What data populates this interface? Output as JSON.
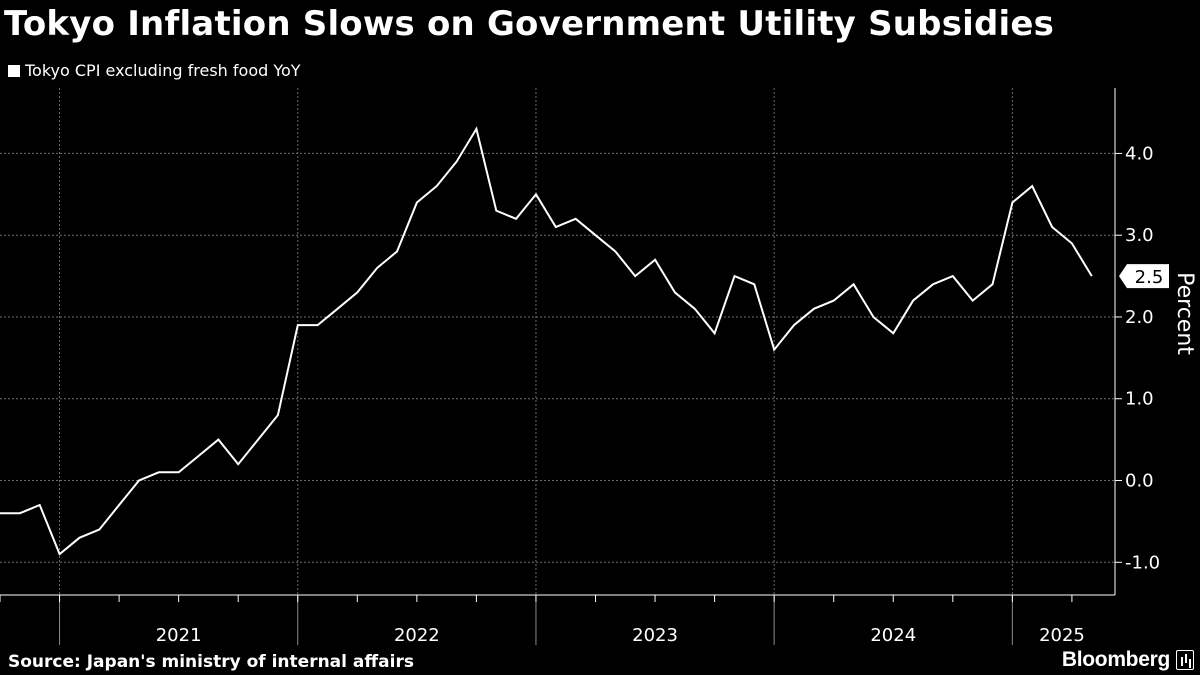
{
  "title": "Tokyo Inflation Slows on Government Utility Subsidies",
  "source": "Source: Japan's ministry of internal affairs",
  "brand": "Bloomberg",
  "brand_icon": "bloomberg-chart-icon",
  "colors": {
    "background": "#000000",
    "line": "#ffffff",
    "grid": "#6e6e6e"
  },
  "chart_data": {
    "type": "line",
    "title": "Tokyo Inflation Slows on Government Utility Subsidies",
    "ylabel": "Percent",
    "xlabel": "",
    "ylim": [
      -1.4,
      4.8
    ],
    "yticks": [
      -1.0,
      0.0,
      1.0,
      2.0,
      3.0,
      4.0
    ],
    "ytick_labels": [
      "-1.0",
      "0.0",
      "1.0",
      "2.0",
      "3.0",
      "4.0"
    ],
    "grid": true,
    "legend_position": "top-left",
    "x_labels": [
      "2021",
      "2022",
      "2023",
      "2024",
      "2025"
    ],
    "last_value_label": "2.5",
    "series": [
      {
        "name": "Tokyo CPI excluding fresh food YoY",
        "x": [
          "2020-10",
          "2020-11",
          "2020-12",
          "2021-01",
          "2021-02",
          "2021-03",
          "2021-04",
          "2021-05",
          "2021-06",
          "2021-07",
          "2021-08",
          "2021-09",
          "2021-10",
          "2021-11",
          "2021-12",
          "2022-01",
          "2022-02",
          "2022-03",
          "2022-04",
          "2022-05",
          "2022-06",
          "2022-07",
          "2022-08",
          "2022-09",
          "2022-10",
          "2022-11",
          "2022-12",
          "2023-01",
          "2023-02",
          "2023-03",
          "2023-04",
          "2023-05",
          "2023-06",
          "2023-07",
          "2023-08",
          "2023-09",
          "2023-10",
          "2023-11",
          "2023-12",
          "2024-01",
          "2024-02",
          "2024-03",
          "2024-04",
          "2024-05",
          "2024-06",
          "2024-07",
          "2024-08",
          "2024-09",
          "2024-10",
          "2024-11",
          "2024-12",
          "2025-01",
          "2025-02",
          "2025-03",
          "2025-04",
          "2025-05"
        ],
        "values": [
          -0.4,
          -0.4,
          -0.3,
          -0.9,
          -0.7,
          -0.6,
          -0.3,
          0.0,
          0.1,
          0.1,
          0.3,
          0.5,
          0.2,
          0.5,
          0.8,
          1.9,
          1.9,
          2.1,
          2.3,
          2.6,
          2.8,
          3.4,
          3.6,
          3.9,
          4.3,
          3.3,
          3.2,
          3.5,
          3.1,
          3.2,
          3.0,
          2.8,
          2.5,
          2.7,
          2.3,
          2.1,
          1.8,
          2.5,
          2.4,
          1.6,
          1.9,
          2.1,
          2.2,
          2.4,
          2.0,
          1.8,
          2.2,
          2.4,
          2.5,
          2.2,
          2.4,
          3.4,
          3.6,
          3.1,
          2.9,
          2.5
        ]
      }
    ]
  }
}
